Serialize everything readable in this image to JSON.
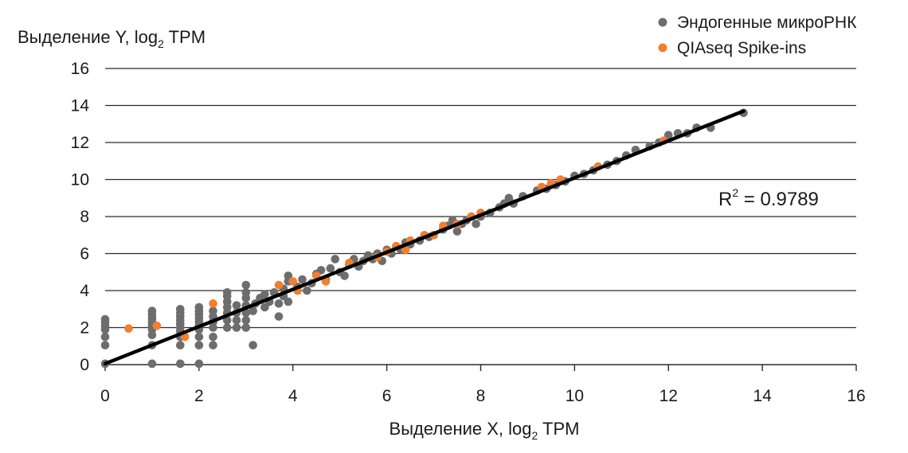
{
  "chart_data": {
    "type": "scatter",
    "xlabel": {
      "main": "Выделение X, log",
      "sub": "2",
      "tail": " TPM"
    },
    "ylabel": {
      "main": "Выделение Y, log",
      "sub": "2",
      "tail": " TPM"
    },
    "xlim": [
      0,
      16
    ],
    "ylim": [
      0,
      16
    ],
    "x_ticks": [
      "0",
      "2",
      "4",
      "6",
      "8",
      "10",
      "12",
      "14",
      "16"
    ],
    "y_ticks": [
      "0",
      "2",
      "4",
      "6",
      "8",
      "10",
      "12",
      "14",
      "16"
    ],
    "grid": "horizontal",
    "legend_position": "top-right",
    "annotation": {
      "base": "R",
      "sup": "2",
      "value": " = 0.9789"
    },
    "trendline": {
      "x": [
        0,
        13.6
      ],
      "y": [
        0.05,
        13.7
      ],
      "color": "#000000"
    },
    "series": [
      {
        "name": "Эндогенные микроРНК",
        "color": "#6d6d6d",
        "points": [
          [
            0,
            0.05
          ],
          [
            0,
            1.05
          ],
          [
            0,
            1.5
          ],
          [
            0,
            1.9
          ],
          [
            0,
            2.1
          ],
          [
            0,
            2.3
          ],
          [
            0,
            2.45
          ],
          [
            1,
            0.05
          ],
          [
            1,
            1.05
          ],
          [
            1,
            1.6
          ],
          [
            1,
            1.9
          ],
          [
            1,
            2.1
          ],
          [
            1,
            2.3
          ],
          [
            1,
            2.5
          ],
          [
            1,
            2.7
          ],
          [
            1,
            2.9
          ],
          [
            1.6,
            0.05
          ],
          [
            1.6,
            1.05
          ],
          [
            1.6,
            1.5
          ],
          [
            1.6,
            1.8
          ],
          [
            1.6,
            2.0
          ],
          [
            1.6,
            2.2
          ],
          [
            1.6,
            2.4
          ],
          [
            1.6,
            2.6
          ],
          [
            1.6,
            2.8
          ],
          [
            1.6,
            3.0
          ],
          [
            2,
            0.05
          ],
          [
            2,
            1.05
          ],
          [
            2,
            1.5
          ],
          [
            2,
            1.9
          ],
          [
            2,
            2.1
          ],
          [
            2,
            2.3
          ],
          [
            2,
            2.5
          ],
          [
            2,
            2.7
          ],
          [
            2,
            2.9
          ],
          [
            2,
            3.1
          ],
          [
            2.3,
            1.05
          ],
          [
            2.3,
            1.5
          ],
          [
            2.3,
            2.0
          ],
          [
            2.3,
            2.3
          ],
          [
            2.3,
            2.6
          ],
          [
            2.3,
            2.9
          ],
          [
            2.6,
            2.0
          ],
          [
            2.6,
            2.4
          ],
          [
            2.6,
            2.8
          ],
          [
            2.6,
            3.1
          ],
          [
            2.6,
            3.4
          ],
          [
            2.6,
            3.7
          ],
          [
            2.6,
            3.9
          ],
          [
            2.8,
            2.0
          ],
          [
            2.8,
            2.4
          ],
          [
            2.8,
            2.8
          ],
          [
            2.8,
            3.2
          ],
          [
            3.0,
            2.0
          ],
          [
            3.0,
            2.4
          ],
          [
            3.0,
            2.8
          ],
          [
            3.0,
            3.2
          ],
          [
            3.0,
            3.6
          ],
          [
            3.0,
            3.9
          ],
          [
            3.0,
            4.3
          ],
          [
            3.15,
            1.05
          ],
          [
            3.15,
            2.9
          ],
          [
            3.2,
            3.3
          ],
          [
            3.3,
            3.6
          ],
          [
            3.4,
            3.1
          ],
          [
            3.4,
            3.8
          ],
          [
            3.5,
            3.4
          ],
          [
            3.6,
            3.9
          ],
          [
            3.7,
            2.6
          ],
          [
            3.7,
            3.3
          ],
          [
            3.8,
            3.7
          ],
          [
            3.8,
            4.1
          ],
          [
            3.9,
            3.4
          ],
          [
            3.9,
            4.5
          ],
          [
            3.9,
            4.8
          ],
          [
            4.1,
            4.2
          ],
          [
            4.2,
            4.6
          ],
          [
            4.3,
            4.0
          ],
          [
            4.4,
            4.4
          ],
          [
            4.5,
            4.9
          ],
          [
            4.6,
            5.1
          ],
          [
            4.7,
            4.6
          ],
          [
            4.8,
            5.2
          ],
          [
            4.9,
            5.7
          ],
          [
            5.0,
            5.0
          ],
          [
            5.1,
            4.8
          ],
          [
            5.2,
            5.4
          ],
          [
            5.3,
            5.7
          ],
          [
            5.4,
            5.3
          ],
          [
            5.5,
            5.6
          ],
          [
            5.6,
            5.9
          ],
          [
            5.7,
            5.7
          ],
          [
            5.8,
            6.0
          ],
          [
            5.9,
            5.6
          ],
          [
            6.0,
            6.2
          ],
          [
            6.1,
            6.0
          ],
          [
            6.2,
            6.4
          ],
          [
            6.3,
            6.2
          ],
          [
            6.4,
            6.6
          ],
          [
            6.5,
            6.5
          ],
          [
            6.7,
            6.7
          ],
          [
            6.9,
            6.9
          ],
          [
            7.0,
            7.0
          ],
          [
            7.2,
            7.3
          ],
          [
            7.3,
            7.5
          ],
          [
            7.4,
            7.8
          ],
          [
            7.5,
            7.2
          ],
          [
            7.6,
            7.6
          ],
          [
            7.7,
            7.8
          ],
          [
            7.8,
            8.0
          ],
          [
            7.9,
            7.6
          ],
          [
            8.0,
            8.0
          ],
          [
            8.2,
            8.2
          ],
          [
            8.4,
            8.5
          ],
          [
            8.5,
            8.7
          ],
          [
            8.6,
            9.0
          ],
          [
            8.7,
            8.7
          ],
          [
            8.9,
            9.1
          ],
          [
            9.2,
            9.4
          ],
          [
            9.4,
            9.5
          ],
          [
            9.6,
            9.7
          ],
          [
            9.8,
            9.9
          ],
          [
            10.0,
            10.2
          ],
          [
            10.2,
            10.3
          ],
          [
            10.4,
            10.5
          ],
          [
            10.7,
            10.8
          ],
          [
            10.9,
            11.0
          ],
          [
            11.1,
            11.3
          ],
          [
            11.3,
            11.6
          ],
          [
            11.6,
            11.8
          ],
          [
            11.8,
            12.0
          ],
          [
            12.0,
            12.4
          ],
          [
            12.2,
            12.5
          ],
          [
            12.4,
            12.5
          ],
          [
            12.6,
            12.8
          ],
          [
            12.9,
            12.8
          ],
          [
            13.6,
            13.6
          ]
        ]
      },
      {
        "name": "QIAseq Spike-ins",
        "color": "#f07f30",
        "points": [
          [
            0.5,
            1.95
          ],
          [
            1.1,
            2.1
          ],
          [
            1.7,
            1.5
          ],
          [
            2.3,
            3.3
          ],
          [
            3.7,
            4.3
          ],
          [
            4.0,
            4.5
          ],
          [
            4.1,
            4.0
          ],
          [
            4.5,
            4.8
          ],
          [
            4.7,
            4.5
          ],
          [
            5.2,
            5.5
          ],
          [
            5.8,
            5.8
          ],
          [
            6.0,
            6.1
          ],
          [
            6.2,
            6.4
          ],
          [
            6.4,
            6.2
          ],
          [
            6.5,
            6.7
          ],
          [
            6.8,
            7.0
          ],
          [
            7.0,
            7.0
          ],
          [
            7.2,
            7.5
          ],
          [
            7.5,
            7.6
          ],
          [
            7.8,
            8.0
          ],
          [
            8.0,
            8.2
          ],
          [
            9.3,
            9.6
          ],
          [
            9.5,
            9.8
          ],
          [
            9.7,
            10.0
          ],
          [
            10.5,
            10.7
          ],
          [
            11.9,
            12.1
          ]
        ]
      }
    ]
  }
}
